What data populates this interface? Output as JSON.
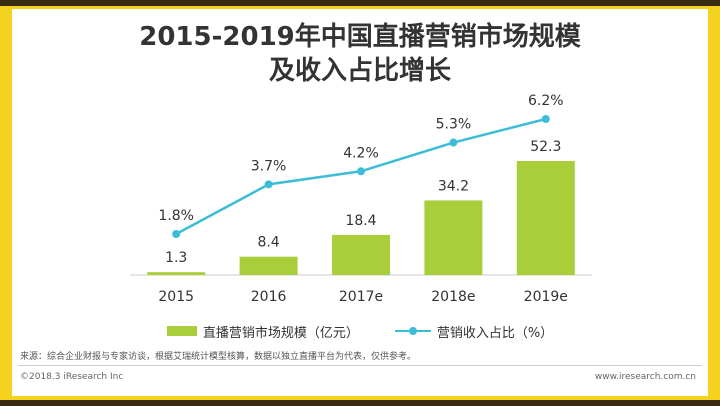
{
  "header": {
    "title_line1": "2015-2019年中国直播营销市场规模",
    "title_line2": "及收入占比增长"
  },
  "chart_data": {
    "type": "bar",
    "categories": [
      "2015",
      "2016",
      "2017e",
      "2018e",
      "2019e"
    ],
    "series": [
      {
        "name": "直播营销市场规模（亿元）",
        "type": "bar",
        "values": [
          1.3,
          8.4,
          18.4,
          34.2,
          52.3
        ],
        "labels": [
          "1.3",
          "8.4",
          "18.4",
          "34.2",
          "52.3"
        ],
        "color": "#a8cf3a"
      },
      {
        "name": "营销收入占比（%）",
        "type": "line",
        "values": [
          1.8,
          3.7,
          4.2,
          5.3,
          6.2
        ],
        "labels": [
          "1.8%",
          "3.7%",
          "4.2%",
          "5.3%",
          "6.2%"
        ],
        "color": "#3bbdd6"
      }
    ],
    "ylim": [
      0,
      60
    ],
    "y2lim": [
      0,
      7
    ]
  },
  "legend": {
    "bar_label": "直播营销市场规模（亿元）",
    "line_label": "营销收入占比（%）"
  },
  "source": "来源：综合企业财报与专家访谈，根据艾瑞统计模型核算，数据以独立直播平台为代表，仅供参考。",
  "footer": {
    "copyright": "©2018.3 iResearch Inc",
    "website": "www.iresearch.com.cn"
  }
}
